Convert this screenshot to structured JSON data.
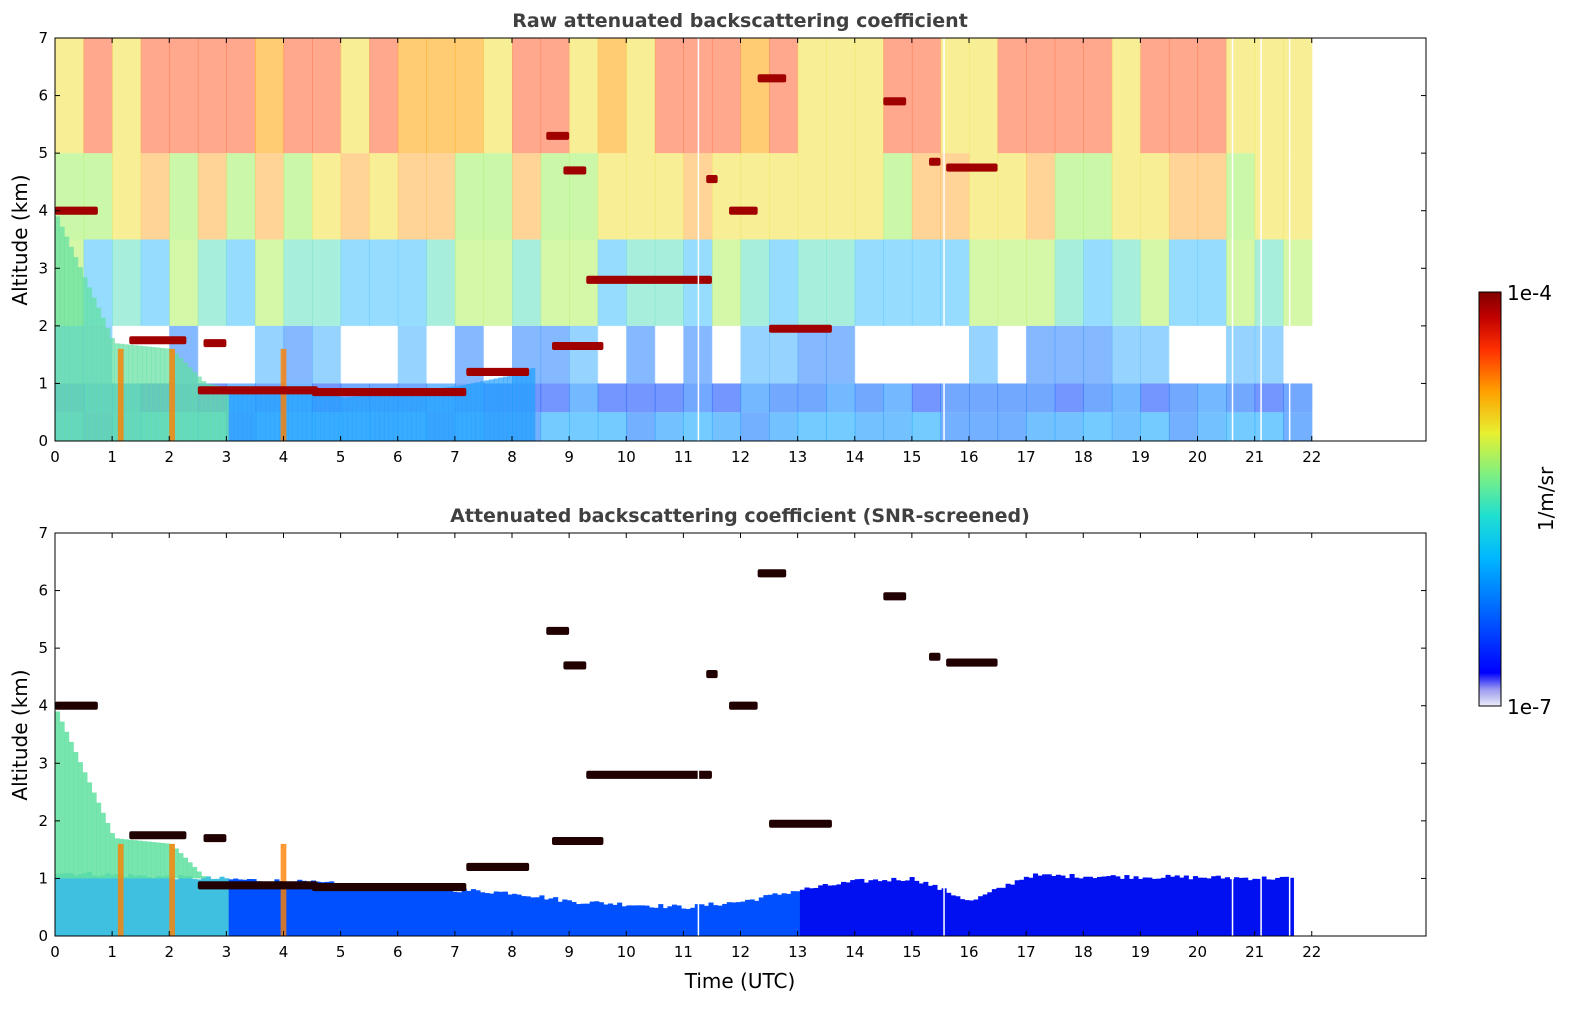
{
  "chart_data": [
    {
      "type": "heatmap",
      "title": "Raw attenuated backscattering coefficient",
      "ylabel": "Altitude (km)",
      "xlabel": "",
      "xlim": [
        0,
        24
      ],
      "ylim": [
        0,
        7
      ],
      "x_ticks": [
        0,
        1,
        2,
        3,
        4,
        5,
        6,
        7,
        8,
        9,
        10,
        11,
        12,
        13,
        14,
        15,
        16,
        17,
        18,
        19,
        20,
        21,
        22
      ],
      "y_ticks": [
        0,
        1,
        2,
        3,
        4,
        5,
        6,
        7
      ],
      "data_coverage_hours": [
        0,
        21.65
      ],
      "data_gaps_hours": [
        11.25,
        15.55,
        20.6,
        21.1,
        21.6
      ],
      "features": {
        "boundary_layer_top_km": [
          {
            "t": 0.0,
            "z": 3.9
          },
          {
            "t": 1.0,
            "z": 1.7
          },
          {
            "t": 2.0,
            "z": 1.6
          },
          {
            "t": 2.6,
            "z": 1.0
          },
          {
            "t": 3.5,
            "z": 0.85
          },
          {
            "t": 4.5,
            "z": 0.9
          },
          {
            "t": 5.0,
            "z": 0.75
          },
          {
            "t": 6.0,
            "z": 0.85
          },
          {
            "t": 7.0,
            "z": 0.95
          },
          {
            "t": 8.0,
            "z": 1.15
          },
          {
            "t": 8.4,
            "z": 1.3
          }
        ],
        "cloud_layers": [
          {
            "t_start": 0.0,
            "t_end": 0.75,
            "z_km": 4.0
          },
          {
            "t_start": 1.3,
            "t_end": 2.3,
            "z_km": 1.75
          },
          {
            "t_start": 2.6,
            "t_end": 3.0,
            "z_km": 1.7
          },
          {
            "t_start": 2.5,
            "t_end": 4.6,
            "z_km": 0.88
          },
          {
            "t_start": 4.5,
            "t_end": 7.2,
            "z_km": 0.85
          },
          {
            "t_start": 7.2,
            "t_end": 8.3,
            "z_km": 1.2
          },
          {
            "t_start": 8.6,
            "t_end": 9.0,
            "z_km": 5.3
          },
          {
            "t_start": 8.9,
            "t_end": 9.3,
            "z_km": 4.7
          },
          {
            "t_start": 8.7,
            "t_end": 9.6,
            "z_km": 1.65
          },
          {
            "t_start": 9.3,
            "t_end": 11.5,
            "z_km": 2.8
          },
          {
            "t_start": 11.4,
            "t_end": 11.6,
            "z_km": 4.55
          },
          {
            "t_start": 11.8,
            "t_end": 12.3,
            "z_km": 4.0
          },
          {
            "t_start": 12.3,
            "t_end": 12.8,
            "z_km": 6.3
          },
          {
            "t_start": 12.5,
            "t_end": 13.6,
            "z_km": 1.95
          },
          {
            "t_start": 14.5,
            "t_end": 14.9,
            "z_km": 5.9
          },
          {
            "t_start": 15.3,
            "t_end": 15.5,
            "z_km": 4.85
          },
          {
            "t_start": 15.6,
            "t_end": 16.5,
            "z_km": 4.75
          }
        ]
      }
    },
    {
      "type": "heatmap",
      "title": "Attenuated backscattering coefficient (SNR-screened)",
      "ylabel": "Altitude (km)",
      "xlabel": "Time (UTC)",
      "xlim": [
        0,
        24
      ],
      "ylim": [
        0,
        7
      ],
      "x_ticks": [
        0,
        1,
        2,
        3,
        4,
        5,
        6,
        7,
        8,
        9,
        10,
        11,
        12,
        13,
        14,
        15,
        16,
        17,
        18,
        19,
        20,
        21,
        22
      ],
      "y_ticks": [
        0,
        1,
        2,
        3,
        4,
        5,
        6,
        7
      ],
      "data_coverage_hours": [
        0,
        21.65
      ],
      "data_gaps_hours": [
        11.25,
        15.55,
        20.6,
        21.1,
        21.6
      ],
      "features": {
        "screened_signal_top_km": [
          {
            "t": 0.0,
            "z": 1.1
          },
          {
            "t": 4.0,
            "z": 0.95
          },
          {
            "t": 8.0,
            "z": 0.75
          },
          {
            "t": 9.0,
            "z": 0.6
          },
          {
            "t": 11.0,
            "z": 0.5
          },
          {
            "t": 12.0,
            "z": 0.6
          },
          {
            "t": 13.0,
            "z": 0.8
          },
          {
            "t": 14.0,
            "z": 0.95
          },
          {
            "t": 15.0,
            "z": 1.0
          },
          {
            "t": 16.0,
            "z": 0.6
          },
          {
            "t": 17.0,
            "z": 1.05
          },
          {
            "t": 21.65,
            "z": 1.0
          }
        ]
      }
    }
  ],
  "colorbar": {
    "label": "1/m/sr",
    "max_label": "1e-4",
    "min_label": "1e-7",
    "min": 1e-07,
    "max": 0.0001,
    "scale": "log",
    "colormap": [
      "#0000a0",
      "#0000ff",
      "#0060ff",
      "#00c0ff",
      "#30e0c0",
      "#70f080",
      "#c0f040",
      "#ffe000",
      "#ff9000",
      "#ff3000",
      "#c00000",
      "#800000"
    ]
  }
}
